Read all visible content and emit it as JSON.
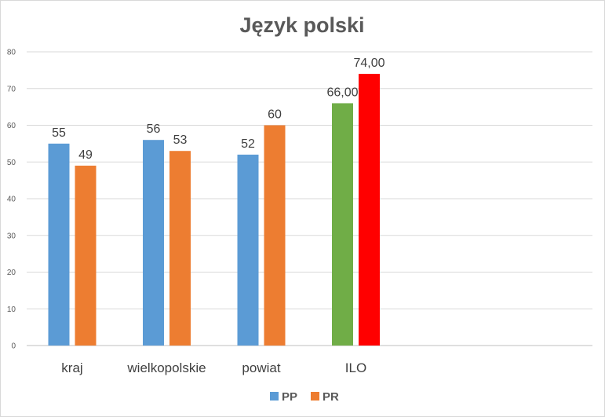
{
  "chart_data": {
    "type": "bar",
    "title": "Język polski",
    "xlabel": "",
    "ylabel": "",
    "ylim": [
      0,
      80
    ],
    "yticks": [
      "0",
      "10",
      "20",
      "30",
      "40",
      "50",
      "60",
      "70",
      "80"
    ],
    "categories": [
      "kraj",
      "wielkopolskie",
      "powiat",
      "ILO"
    ],
    "grid": true,
    "legend_position": "bottom",
    "series": [
      {
        "name": "PP",
        "color": "#5b9bd5",
        "values": [
          55,
          56,
          52,
          66
        ],
        "labels": [
          "55",
          "56",
          "52",
          "66,00"
        ],
        "point_colors": [
          "#5b9bd5",
          "#5b9bd5",
          "#5b9bd5",
          "#70ad47"
        ]
      },
      {
        "name": "PR",
        "color": "#ed7d31",
        "values": [
          49,
          53,
          60,
          74
        ],
        "labels": [
          "49",
          "53",
          "60",
          "74,00"
        ],
        "point_colors": [
          "#ed7d31",
          "#ed7d31",
          "#ed7d31",
          "#ff0000"
        ]
      }
    ]
  }
}
